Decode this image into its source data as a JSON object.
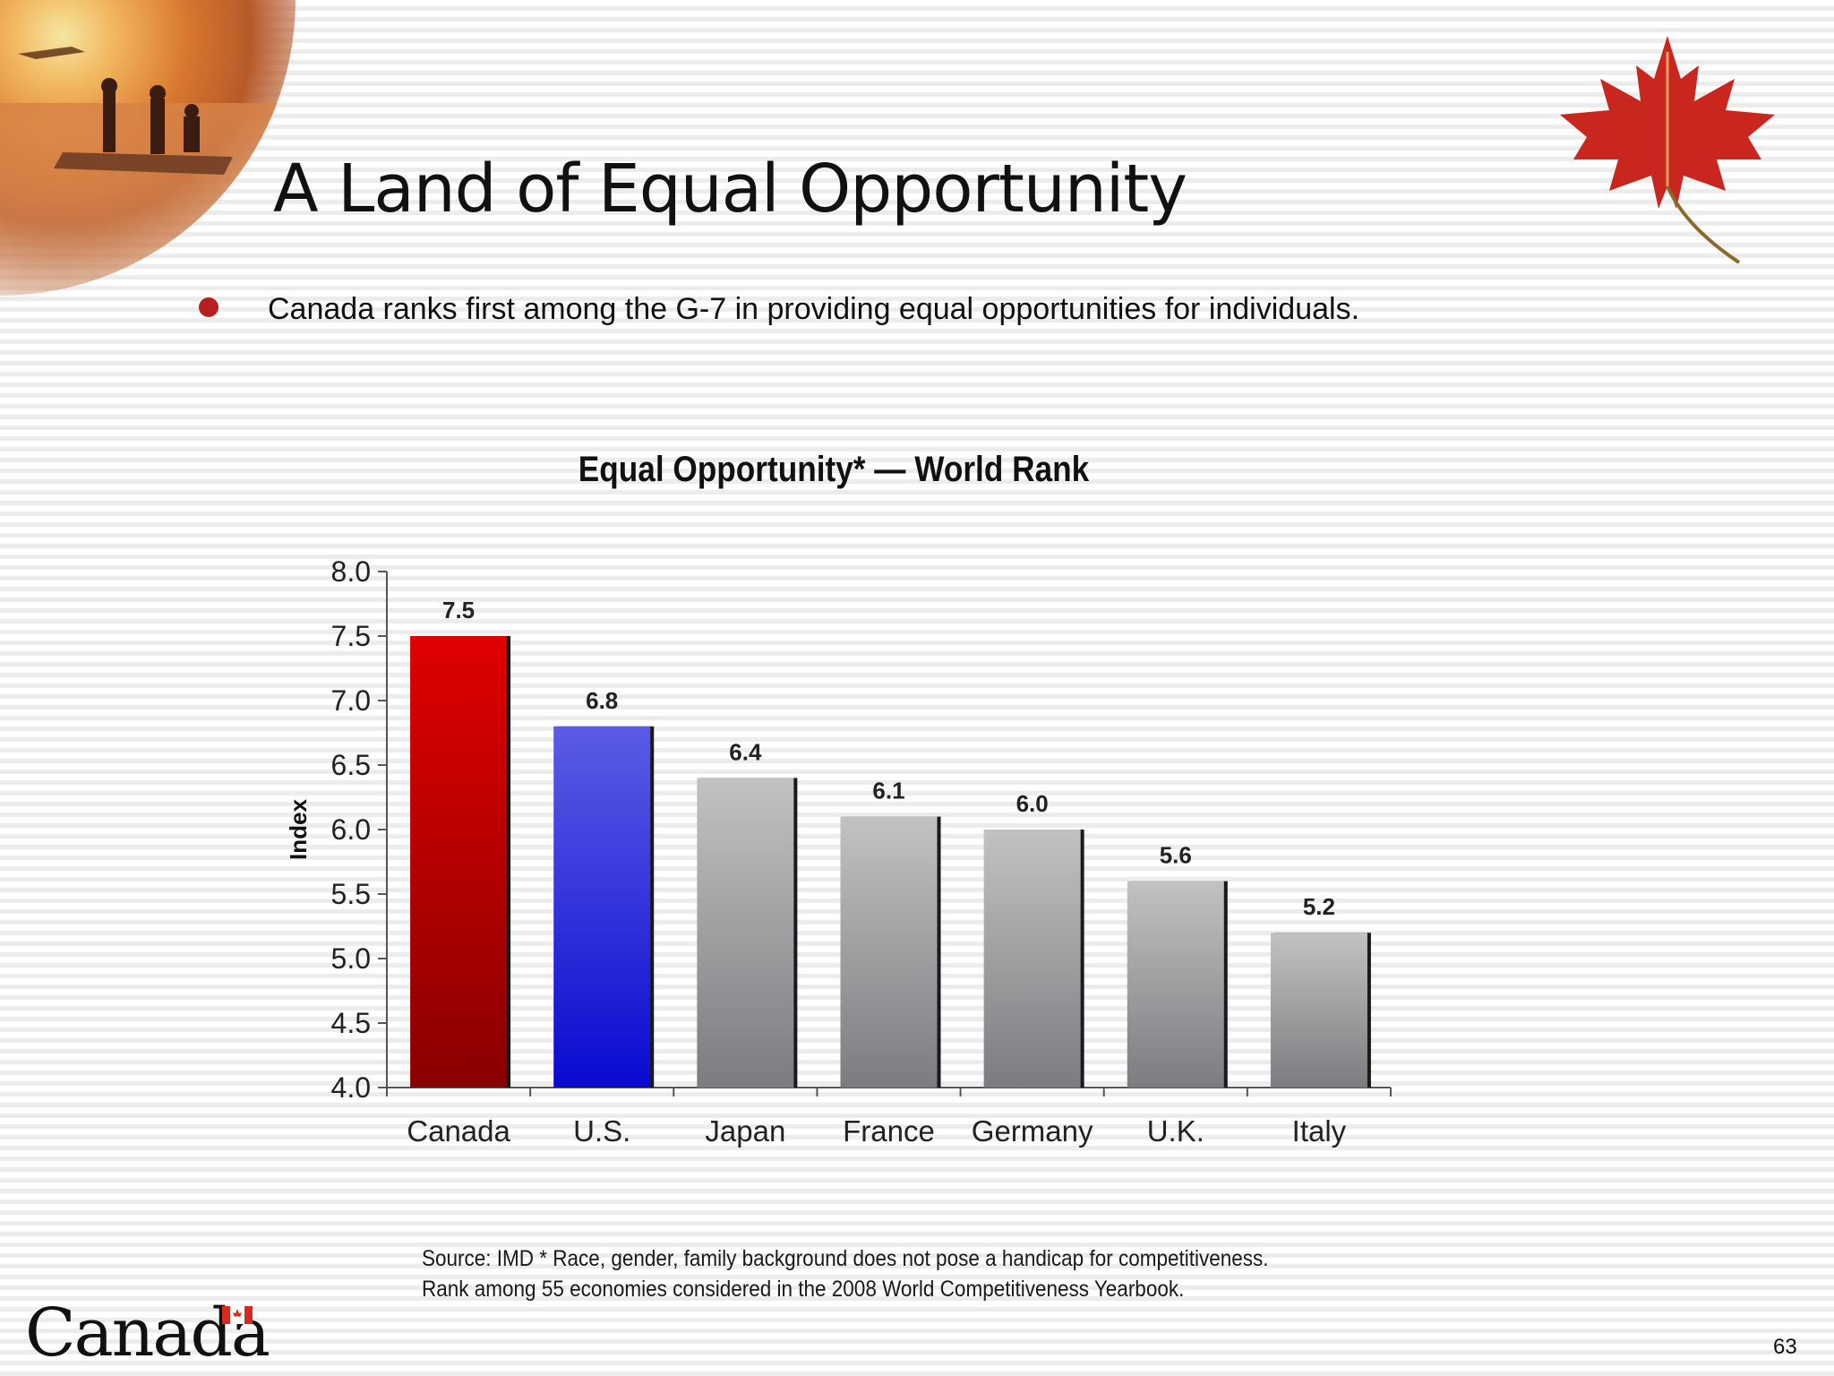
{
  "slide": {
    "title": "A Land of Equal Opportunity",
    "bullet": "Canada ranks first among the G-7 in providing equal opportunities for individuals.",
    "source_line1": "Source: IMD  * Race, gender, family background does not pose a handicap for competitiveness.",
    "source_line2": "Rank among 55 economies considered in the 2008 World Competitiveness Yearbook.",
    "logo_text": "Canada",
    "page_number": "63"
  },
  "chart_data": {
    "type": "bar",
    "title": "Equal Opportunity* — World Rank",
    "xlabel": "",
    "ylabel": "Index",
    "ylim": [
      4.0,
      8.0
    ],
    "yticks": [
      "8.0",
      "7.5",
      "7.0",
      "6.5",
      "6.0",
      "5.5",
      "5.0",
      "4.5",
      "4.0"
    ],
    "categories": [
      "Canada",
      "U.S.",
      "Japan",
      "France",
      "Germany",
      "U.K.",
      "Italy"
    ],
    "values": [
      7.5,
      6.8,
      6.4,
      6.1,
      6.0,
      5.6,
      5.2
    ],
    "value_labels": [
      "7.5",
      "6.8",
      "6.4",
      "6.1",
      "6.0",
      "5.6",
      "5.2"
    ],
    "bar_colors": [
      "#c00000",
      "#3a3ae0",
      "#9c9c9c",
      "#9c9c9c",
      "#9c9c9c",
      "#9c9c9c",
      "#9c9c9c"
    ],
    "grid": false,
    "legend": "none"
  }
}
